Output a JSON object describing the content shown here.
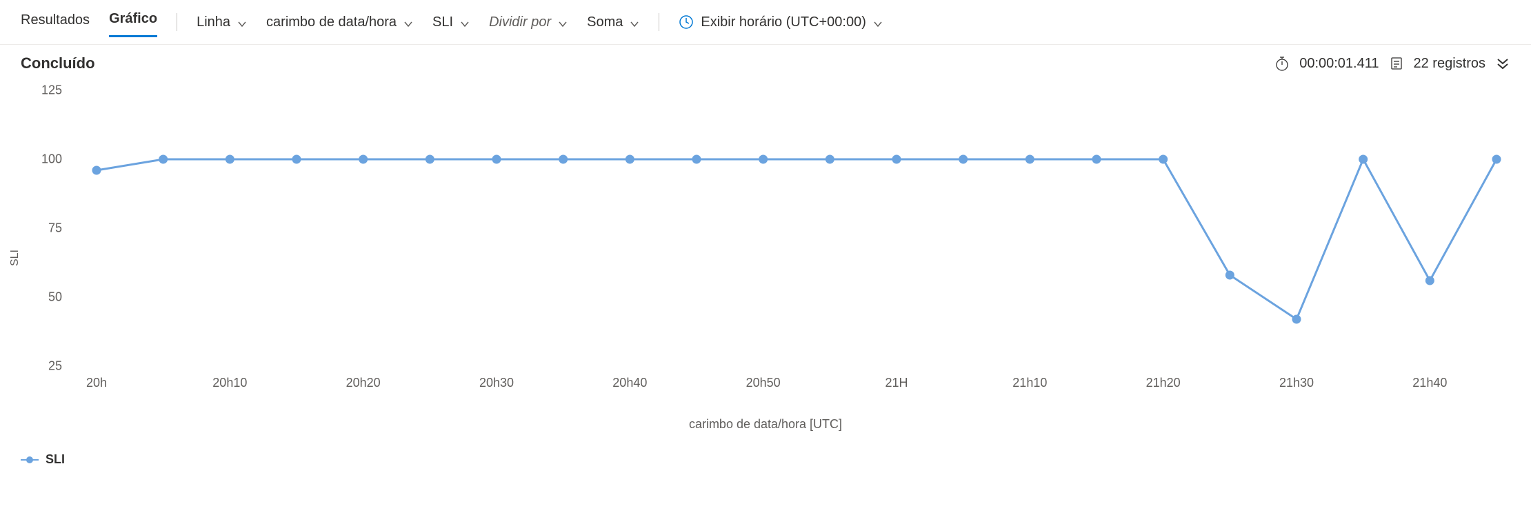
{
  "toolbar": {
    "tab_results": "Resultados",
    "tab_chart": "Gráfico",
    "dd_chart_type": "Linha",
    "dd_xfield": "carimbo de data/hora",
    "dd_yfield": "SLI",
    "dd_splitby": "Dividir por",
    "dd_agg": "Soma",
    "dd_timedisplay": "Exibir horário (UTC+00:00)"
  },
  "status": {
    "title": "Concluído",
    "elapsed": "00:00:01.411",
    "records": "22 registros"
  },
  "chart": {
    "type": "line",
    "ylabel": "SLI",
    "xlabel": "carimbo de data/hora [UTC]",
    "ylim": [
      25,
      125
    ],
    "yticks": [
      25,
      50,
      75,
      100,
      125
    ],
    "x_labels": [
      "20h",
      "20h10",
      "20h20",
      "20h30",
      "20h40",
      "20h50",
      "21H",
      "21h10",
      "21h20",
      "21h30",
      "21h40"
    ],
    "x_label_indices": [
      0,
      2,
      4,
      6,
      8,
      10,
      12,
      14,
      16,
      18,
      20
    ],
    "n_points": 22,
    "values": [
      96,
      100,
      100,
      100,
      100,
      100,
      100,
      100,
      100,
      100,
      100,
      100,
      100,
      100,
      100,
      100,
      100,
      58,
      42,
      100,
      56,
      100
    ],
    "line_color": "#6ba3df",
    "marker_fill": "#6ba3df",
    "marker_stroke": "#6ba3df",
    "marker_radius": 6,
    "line_width": 3,
    "background_color": "#ffffff",
    "legend_label": "SLI",
    "accent_color": "#0078d4"
  }
}
